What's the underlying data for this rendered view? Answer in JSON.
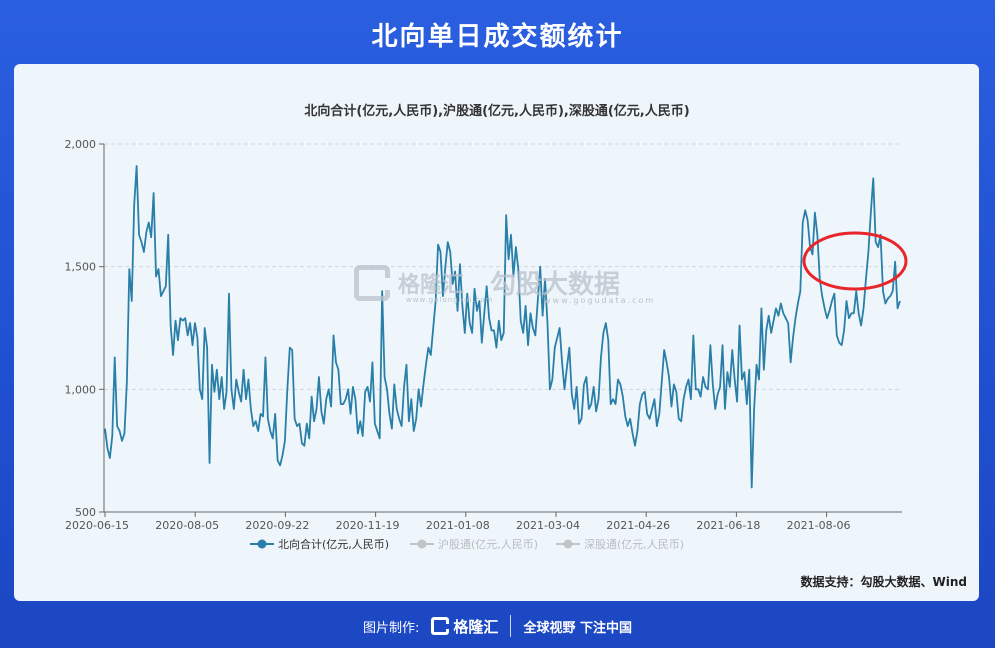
{
  "header": {
    "title": "北向单日成交额统计"
  },
  "source_text": "数据支持：勾股大数据、Wind",
  "watermark": {
    "brand1": "格隆汇",
    "url1": "www.gelonghui.com",
    "brand2": "勾股大数据",
    "url2": "www.gogudata.com"
  },
  "footer": {
    "made_by": "图片制作:",
    "brand": "格隆汇",
    "slogan": "全球视野 下注中国"
  },
  "colors": {
    "line": "#2a7fa8",
    "legend_inactive": "#c0c4c8",
    "circle": "#e8262a",
    "grid": "#cfd6dd"
  },
  "chart_data": {
    "type": "line",
    "title": "北向合计(亿元,人民币),沪股通(亿元,人民币),深股通(亿元,人民币)",
    "xlabel": "",
    "ylabel": "",
    "ylim": [
      500,
      2000
    ],
    "yticks": [
      500,
      1000,
      1500,
      2000
    ],
    "ytick_labels": [
      "500",
      "1,000",
      "1,500",
      "2,000"
    ],
    "xtick_labels": [
      "2020-06-15",
      "2020-08-05",
      "2020-09-22",
      "2020-11-19",
      "2021-01-08",
      "2021-03-04",
      "2021-04-26",
      "2021-06-18",
      "2021-08-06"
    ],
    "grid": true,
    "legend_position": "bottom",
    "legend": [
      {
        "name": "北向合计(亿元,人民币)",
        "active": true
      },
      {
        "name": "沪股通(亿元,人民币)",
        "active": false
      },
      {
        "name": "深股通(亿元,人民币)",
        "active": false
      }
    ],
    "annotation": "red ellipse highlighting the Aug 2021 surge",
    "series": [
      {
        "name": "北向合计(亿元,人民币)",
        "values": [
          840,
          760,
          720,
          810,
          1130,
          850,
          830,
          790,
          820,
          1030,
          1490,
          1360,
          1750,
          1910,
          1630,
          1600,
          1560,
          1640,
          1680,
          1620,
          1800,
          1460,
          1490,
          1380,
          1400,
          1420,
          1630,
          1260,
          1140,
          1280,
          1200,
          1290,
          1280,
          1290,
          1220,
          1270,
          1180,
          1270,
          1210,
          1000,
          960,
          1250,
          1170,
          700,
          1100,
          990,
          1080,
          960,
          1050,
          920,
          990,
          1390,
          1000,
          920,
          1040,
          990,
          950,
          1080,
          960,
          1040,
          920,
          850,
          870,
          830,
          900,
          890,
          1130,
          880,
          830,
          800,
          900,
          710,
          690,
          730,
          790,
          1000,
          1170,
          1160,
          880,
          850,
          860,
          780,
          770,
          860,
          800,
          970,
          870,
          920,
          1050,
          910,
          860,
          960,
          1000,
          930,
          1220,
          1110,
          1080,
          940,
          940,
          960,
          1000,
          900,
          1010,
          960,
          820,
          870,
          810,
          990,
          1010,
          950,
          1110,
          860,
          830,
          800,
          1400,
          1050,
          1000,
          900,
          840,
          1020,
          920,
          880,
          850,
          1010,
          1100,
          870,
          960,
          830,
          880,
          1000,
          930,
          1020,
          1100,
          1170,
          1140,
          1250,
          1360,
          1590,
          1560,
          1380,
          1500,
          1600,
          1560,
          1430,
          1480,
          1320,
          1510,
          1340,
          1230,
          1390,
          1270,
          1230,
          1410,
          1320,
          1360,
          1190,
          1310,
          1420,
          1290,
          1240,
          1240,
          1170,
          1280,
          1200,
          1230,
          1710,
          1530,
          1630,
          1460,
          1580,
          1490,
          1280,
          1230,
          1340,
          1180,
          1310,
          1250,
          1220,
          1360,
          1500,
          1300,
          1450,
          1270,
          1000,
          1040,
          1170,
          1210,
          1250,
          1110,
          1000,
          1090,
          1170,
          980,
          920,
          1010,
          860,
          880,
          1020,
          1050,
          920,
          940,
          1010,
          910,
          960,
          1130,
          1230,
          1270,
          1200,
          940,
          960,
          940,
          1040,
          1020,
          970,
          890,
          850,
          880,
          820,
          770,
          830,
          940,
          980,
          990,
          900,
          880,
          920,
          960,
          850,
          900,
          1030,
          1160,
          1110,
          1050,
          930,
          1020,
          990,
          880,
          870,
          960,
          1010,
          1040,
          960,
          1220,
          1000,
          1000,
          970,
          1050,
          1010,
          1000,
          1180,
          1020,
          920,
          980,
          1010,
          1180,
          920,
          1070,
          1010,
          1160,
          1040,
          950,
          1260,
          1040,
          1070,
          940,
          1080,
          600,
          920,
          1100,
          1040,
          1330,
          1080,
          1240,
          1300,
          1230,
          1280,
          1330,
          1300,
          1350,
          1310,
          1290,
          1270,
          1110,
          1210,
          1290,
          1350,
          1400,
          1680,
          1730,
          1690,
          1580,
          1550,
          1720,
          1630,
          1450,
          1380,
          1330,
          1290,
          1320,
          1360,
          1390,
          1220,
          1190,
          1180,
          1240,
          1360,
          1290,
          1310,
          1310,
          1400,
          1310,
          1260,
          1330,
          1450,
          1560,
          1720,
          1860,
          1600,
          1580,
          1630,
          1400,
          1350,
          1370,
          1380,
          1400,
          1520,
          1330,
          1360
        ]
      }
    ]
  }
}
